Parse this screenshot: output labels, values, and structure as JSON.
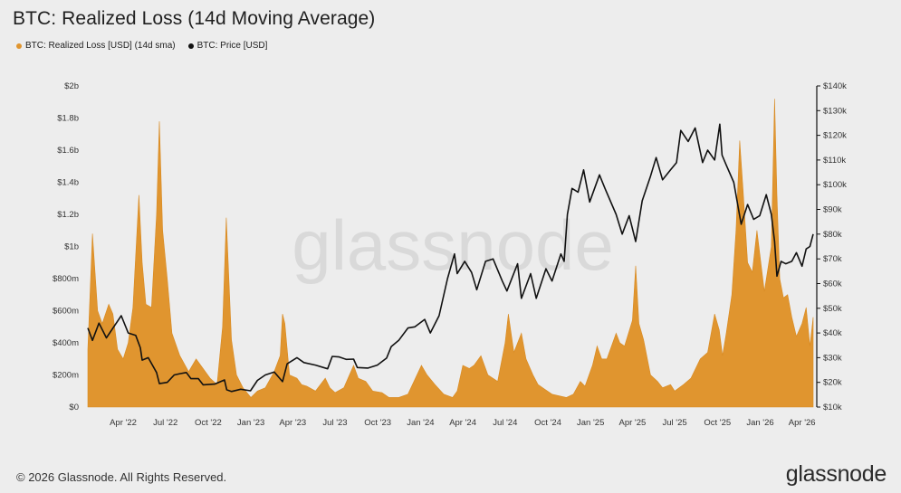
{
  "header": {
    "title": "BTC: Realized Loss (14d Moving Average)"
  },
  "legend": [
    {
      "label": "BTC: Realized Loss [USD] (14d sma)",
      "color": "#e0952f"
    },
    {
      "label": "BTC: Price [USD]",
      "color": "#111111"
    }
  ],
  "footer": {
    "copyright": "© 2026 Glassnode. All Rights Reserved.",
    "logo_text": "glassnode"
  },
  "watermark": "glassnode",
  "chart_data": {
    "type": "area",
    "x_axis": {
      "ticks": [
        "Apr '22",
        "Jul '22",
        "Oct '22",
        "Jan '23",
        "Apr '23",
        "Jul '23",
        "Oct '23",
        "Jan '24",
        "Apr '24",
        "Jul '24",
        "Oct '24",
        "Jan '25",
        "Apr '25",
        "Jul '25",
        "Oct '25",
        "Jan '26",
        "Apr '26"
      ],
      "range": [
        "2022-01-15",
        "2026-04-25"
      ]
    },
    "y_left": {
      "ticks": [
        "$0",
        "$200m",
        "$400m",
        "$600m",
        "$800m",
        "$1b",
        "$1.2b",
        "$1.4b",
        "$1.6b",
        "$1.8b",
        "$2b"
      ],
      "min": 0,
      "max": 2000000000
    },
    "y_right": {
      "ticks": [
        "$10k",
        "$20k",
        "$30k",
        "$40k",
        "$50k",
        "$60k",
        "$70k",
        "$80k",
        "$90k",
        "$100k",
        "$110k",
        "$120k",
        "$130k",
        "$140k"
      ],
      "min": 10000,
      "max": 140000
    },
    "grid": false,
    "series": [
      {
        "name": "BTC: Realized Loss [USD] (14d sma)",
        "axis": "left",
        "color": "#e0952f",
        "x": [
          "2022-01-15",
          "2022-01-25",
          "2022-02-05",
          "2022-02-15",
          "2022-03-01",
          "2022-03-10",
          "2022-03-20",
          "2022-04-01",
          "2022-04-12",
          "2022-04-22",
          "2022-05-05",
          "2022-05-12",
          "2022-05-20",
          "2022-06-01",
          "2022-06-12",
          "2022-06-18",
          "2022-06-25",
          "2022-07-05",
          "2022-07-15",
          "2022-08-01",
          "2022-08-20",
          "2022-09-05",
          "2022-09-20",
          "2022-10-05",
          "2022-10-20",
          "2022-11-01",
          "2022-11-09",
          "2022-11-13",
          "2022-11-20",
          "2022-12-01",
          "2022-12-15",
          "2023-01-01",
          "2023-01-15",
          "2023-02-01",
          "2023-02-20",
          "2023-03-05",
          "2023-03-10",
          "2023-03-15",
          "2023-03-25",
          "2023-04-10",
          "2023-04-20",
          "2023-05-01",
          "2023-05-20",
          "2023-06-10",
          "2023-06-20",
          "2023-07-01",
          "2023-07-20",
          "2023-08-10",
          "2023-08-20",
          "2023-09-05",
          "2023-09-20",
          "2023-10-10",
          "2023-10-25",
          "2023-11-15",
          "2023-12-05",
          "2024-01-03",
          "2024-01-15",
          "2024-02-01",
          "2024-02-20",
          "2024-03-10",
          "2024-03-20",
          "2024-04-01",
          "2024-04-15",
          "2024-04-25",
          "2024-05-10",
          "2024-05-25",
          "2024-06-15",
          "2024-07-01",
          "2024-07-08",
          "2024-07-20",
          "2024-08-05",
          "2024-08-15",
          "2024-08-30",
          "2024-09-10",
          "2024-09-25",
          "2024-10-10",
          "2024-10-25",
          "2024-11-10",
          "2024-11-25",
          "2024-12-10",
          "2024-12-20",
          "2025-01-05",
          "2025-01-15",
          "2025-01-25",
          "2025-02-05",
          "2025-02-25",
          "2025-03-05",
          "2025-03-15",
          "2025-04-01",
          "2025-04-08",
          "2025-04-15",
          "2025-04-25",
          "2025-05-10",
          "2025-05-25",
          "2025-06-05",
          "2025-06-22",
          "2025-07-01",
          "2025-07-20",
          "2025-08-05",
          "2025-08-25",
          "2025-09-10",
          "2025-09-25",
          "2025-10-05",
          "2025-10-12",
          "2025-10-20",
          "2025-11-01",
          "2025-11-10",
          "2025-11-18",
          "2025-11-25",
          "2025-12-05",
          "2025-12-15",
          "2025-12-25",
          "2026-01-10",
          "2026-01-25",
          "2026-02-01",
          "2026-02-06",
          "2026-02-12",
          "2026-02-20",
          "2026-03-01",
          "2026-03-10",
          "2026-03-20",
          "2026-04-01",
          "2026-04-10",
          "2026-04-18",
          "2026-04-25"
        ],
        "values": [
          360000000,
          1080000000,
          600000000,
          520000000,
          640000000,
          580000000,
          360000000,
          300000000,
          400000000,
          620000000,
          1320000000,
          900000000,
          640000000,
          620000000,
          1200000000,
          1780000000,
          1100000000,
          800000000,
          460000000,
          320000000,
          220000000,
          300000000,
          240000000,
          180000000,
          140000000,
          500000000,
          1180000000,
          900000000,
          420000000,
          200000000,
          120000000,
          60000000,
          100000000,
          120000000,
          220000000,
          320000000,
          580000000,
          520000000,
          200000000,
          180000000,
          140000000,
          130000000,
          100000000,
          180000000,
          120000000,
          90000000,
          120000000,
          260000000,
          180000000,
          160000000,
          100000000,
          90000000,
          60000000,
          60000000,
          80000000,
          260000000,
          200000000,
          140000000,
          80000000,
          60000000,
          100000000,
          260000000,
          240000000,
          260000000,
          320000000,
          200000000,
          160000000,
          400000000,
          580000000,
          340000000,
          460000000,
          300000000,
          200000000,
          140000000,
          110000000,
          80000000,
          70000000,
          60000000,
          80000000,
          160000000,
          130000000,
          260000000,
          380000000,
          300000000,
          300000000,
          460000000,
          400000000,
          380000000,
          540000000,
          880000000,
          520000000,
          420000000,
          200000000,
          160000000,
          120000000,
          140000000,
          100000000,
          140000000,
          180000000,
          300000000,
          340000000,
          580000000,
          480000000,
          320000000,
          460000000,
          700000000,
          1100000000,
          1660000000,
          1360000000,
          900000000,
          840000000,
          1100000000,
          720000000,
          1000000000,
          1920000000,
          1320000000,
          800000000,
          680000000,
          700000000,
          560000000,
          440000000,
          520000000,
          620000000,
          380000000,
          560000000
        ]
      },
      {
        "name": "BTC: Price [USD]",
        "axis": "right",
        "color": "#111111",
        "x": [
          "2022-01-15",
          "2022-01-25",
          "2022-02-08",
          "2022-02-24",
          "2022-03-28",
          "2022-04-12",
          "2022-04-28",
          "2022-05-08",
          "2022-05-12",
          "2022-05-25",
          "2022-06-12",
          "2022-06-18",
          "2022-07-05",
          "2022-07-20",
          "2022-08-01",
          "2022-08-15",
          "2022-08-25",
          "2022-09-10",
          "2022-09-20",
          "2022-10-15",
          "2022-11-05",
          "2022-11-10",
          "2022-11-20",
          "2022-12-10",
          "2022-12-31",
          "2023-01-15",
          "2023-02-01",
          "2023-02-20",
          "2023-03-10",
          "2023-03-20",
          "2023-04-10",
          "2023-04-25",
          "2023-05-20",
          "2023-06-15",
          "2023-06-25",
          "2023-07-10",
          "2023-07-25",
          "2023-08-10",
          "2023-08-18",
          "2023-09-10",
          "2023-09-30",
          "2023-10-20",
          "2023-10-30",
          "2023-11-15",
          "2023-12-05",
          "2023-12-20",
          "2024-01-10",
          "2024-01-22",
          "2024-02-10",
          "2024-02-28",
          "2024-03-14",
          "2024-03-20",
          "2024-04-05",
          "2024-04-20",
          "2024-05-01",
          "2024-05-20",
          "2024-06-05",
          "2024-06-25",
          "2024-07-05",
          "2024-07-28",
          "2024-08-05",
          "2024-08-25",
          "2024-09-06",
          "2024-09-27",
          "2024-10-10",
          "2024-10-29",
          "2024-11-05",
          "2024-11-12",
          "2024-11-22",
          "2024-12-05",
          "2024-12-17",
          "2024-12-30",
          "2025-01-20",
          "2025-02-01",
          "2025-02-25",
          "2025-03-10",
          "2025-03-25",
          "2025-04-08",
          "2025-04-22",
          "2025-05-10",
          "2025-05-22",
          "2025-06-05",
          "2025-06-22",
          "2025-07-05",
          "2025-07-14",
          "2025-07-30",
          "2025-08-14",
          "2025-08-30",
          "2025-09-10",
          "2025-09-25",
          "2025-10-06",
          "2025-10-11",
          "2025-10-20",
          "2025-11-05",
          "2025-11-21",
          "2025-12-05",
          "2025-12-18",
          "2025-12-31",
          "2026-01-14",
          "2026-01-25",
          "2026-02-01",
          "2026-02-06",
          "2026-02-15",
          "2026-02-25",
          "2026-03-10",
          "2026-03-20",
          "2026-04-01",
          "2026-04-10",
          "2026-04-18",
          "2026-04-25"
        ],
        "values": [
          42000,
          37000,
          44000,
          38000,
          47000,
          40000,
          39000,
          34000,
          29000,
          30000,
          24000,
          19500,
          20000,
          23000,
          23500,
          24000,
          21500,
          21500,
          19000,
          19300,
          21000,
          17000,
          16300,
          17200,
          16600,
          20800,
          23000,
          24200,
          20300,
          27500,
          30000,
          28000,
          27000,
          25500,
          30500,
          30300,
          29300,
          29400,
          26000,
          25800,
          27000,
          29800,
          34500,
          37000,
          42000,
          42500,
          45500,
          40000,
          47000,
          62000,
          72000,
          64000,
          69000,
          64500,
          57500,
          69000,
          70000,
          61000,
          57000,
          68000,
          54000,
          64000,
          54000,
          66000,
          61000,
          72000,
          69000,
          88000,
          98500,
          97000,
          106000,
          93000,
          104000,
          98500,
          88000,
          80000,
          87500,
          77000,
          93500,
          103500,
          111000,
          102000,
          106000,
          109000,
          122000,
          117500,
          123000,
          109000,
          114000,
          110000,
          124500,
          112000,
          108000,
          101000,
          84000,
          92000,
          86000,
          87500,
          96000,
          88000,
          77000,
          63000,
          69000,
          68000,
          69000,
          72500,
          67000,
          74000,
          75000,
          80000
        ]
      }
    ]
  }
}
